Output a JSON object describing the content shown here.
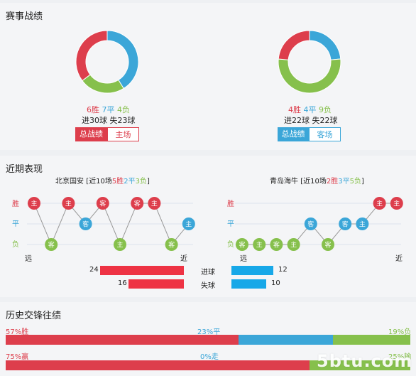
{
  "sections": {
    "record": "赛事战绩",
    "recent": "近期表现",
    "h2h": "历史交锋往绩"
  },
  "colors": {
    "win": "#dd3e4c",
    "draw": "#3ba6d8",
    "loss": "#86c04c",
    "bar_blue": "#17a8e8"
  },
  "record": {
    "left": {
      "donut": {
        "win": 6,
        "draw": 7,
        "loss": 4
      },
      "w_label": "6胜",
      "d_label": "7平",
      "l_label": "4负",
      "goals": "进30球 失23球",
      "tab_active": "总战绩",
      "tab_other": "主场"
    },
    "right": {
      "donut": {
        "win": 4,
        "draw": 4,
        "loss": 9
      },
      "w_label": "4胜",
      "d_label": "4平",
      "l_label": "9负",
      "goals": "进22球 失22球",
      "tab_active": "总战绩",
      "tab_other": "客场"
    }
  },
  "recent": {
    "axis": {
      "win": "胜",
      "draw": "平",
      "loss": "负",
      "far": "远",
      "near": "近"
    },
    "left": {
      "name": "北京国安",
      "pre": "[近10场",
      "w": "5胜",
      "d": "2平",
      "l": "3负",
      "post": "]",
      "games": [
        {
          "r": "W",
          "v": "主"
        },
        {
          "r": "L",
          "v": "客"
        },
        {
          "r": "W",
          "v": "主"
        },
        {
          "r": "D",
          "v": "客"
        },
        {
          "r": "W",
          "v": "客"
        },
        {
          "r": "L",
          "v": "主"
        },
        {
          "r": "W",
          "v": "客"
        },
        {
          "r": "W",
          "v": "主"
        },
        {
          "r": "L",
          "v": "客"
        },
        {
          "r": "D",
          "v": "主"
        }
      ]
    },
    "right": {
      "name": "青岛海牛",
      "pre": "[近10场",
      "w": "2胜",
      "d": "3平",
      "l": "5负",
      "post": "]",
      "games": [
        {
          "r": "L",
          "v": "客"
        },
        {
          "r": "L",
          "v": "主"
        },
        {
          "r": "L",
          "v": "客"
        },
        {
          "r": "L",
          "v": "主"
        },
        {
          "r": "D",
          "v": "客"
        },
        {
          "r": "L",
          "v": "客"
        },
        {
          "r": "D",
          "v": "客"
        },
        {
          "r": "D",
          "v": "主"
        },
        {
          "r": "W",
          "v": "主"
        },
        {
          "r": "W",
          "v": "主"
        }
      ]
    },
    "goals": {
      "scored_label": "进球",
      "conceded_label": "失球",
      "left_scored": 24,
      "left_conceded": 16,
      "right_scored": 12,
      "right_conceded": 10
    }
  },
  "h2h": {
    "row1": {
      "win": 57,
      "draw": 23,
      "loss": 19,
      "win_label": "57%胜",
      "draw_label": "23%平",
      "loss_label": "19%负"
    },
    "row2": {
      "win": 75,
      "draw": 0,
      "loss": 25,
      "win_label": "75%赢",
      "draw_label": "0%走",
      "loss_label": "25%输"
    }
  },
  "watermark": "5btu.com"
}
